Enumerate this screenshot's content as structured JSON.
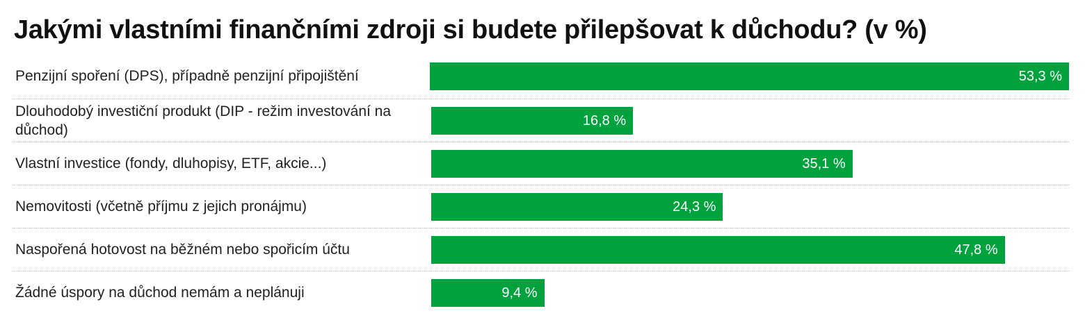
{
  "chart_data": {
    "type": "bar",
    "orientation": "horizontal",
    "title": "Jakými vlastními finančními zdroji si budete přilepšovat k důchodu? (v %)",
    "categories": [
      "Penzijní spoření (DPS), případně penzijní připojištění",
      "Dlouhodobý investiční produkt (DIP - režim investování na důchod)",
      "Vlastní investice (fondy, dluhopisy, ETF, akcie...)",
      "Nemovitosti (včetně příjmu z jejich pronájmu)",
      "Naspořená hotovost na běžném nebo spořicím účtu",
      "Žádné úspory na důchod nemám a neplánuji"
    ],
    "values": [
      53.3,
      16.8,
      35.1,
      24.3,
      47.8,
      9.4
    ],
    "value_labels": [
      "53,3 %",
      "16,8 %",
      "35,1 %",
      "24,3 %",
      "47,8 %",
      "9,4 %"
    ],
    "color": "#00a23d"
  }
}
